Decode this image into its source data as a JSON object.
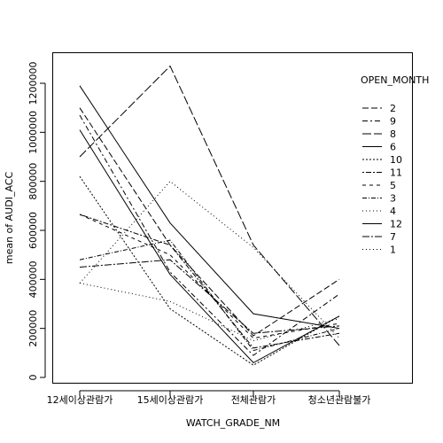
{
  "chart_data": {
    "type": "line",
    "title": "",
    "xlabel": "WATCH_GRADE_NM",
    "ylabel": "mean of AUDI_ACC",
    "categories": [
      "12세이상관람가",
      "15세이상관람가",
      "전체관람가",
      "청소년관람불가"
    ],
    "ylim": [
      0,
      1200000
    ],
    "yticks": [
      0,
      200000,
      400000,
      600000,
      800000,
      1000000,
      1200000
    ],
    "ytick_labels": [
      "0",
      "200000",
      "400000",
      "600000",
      "800000",
      "1000000",
      "1200000"
    ],
    "grid": false,
    "legend": {
      "title": "OPEN_MONTH",
      "placement": "right"
    },
    "series": [
      {
        "name": "2",
        "values": [
          1100000,
          540000,
          170000,
          400000
        ],
        "dash": "7,3"
      },
      {
        "name": "9",
        "values": [
          1070000,
          430000,
          90000,
          340000
        ],
        "dash": "6,3,2,3"
      },
      {
        "name": "8",
        "values": [
          900000,
          1270000,
          540000,
          130000
        ],
        "dash": "10,3"
      },
      {
        "name": "6",
        "values": [
          1190000,
          630000,
          260000,
          200000
        ],
        "dash": ""
      },
      {
        "name": "10",
        "values": [
          820000,
          280000,
          50000,
          250000
        ],
        "dash": "2,2"
      },
      {
        "name": "11",
        "values": [
          665000,
          540000,
          120000,
          180000
        ],
        "dash": "2,2,6,2"
      },
      {
        "name": "5",
        "values": [
          665000,
          500000,
          160000,
          220000
        ],
        "dash": "4,4"
      },
      {
        "name": "3",
        "values": [
          480000,
          560000,
          110000,
          200000
        ],
        "dash": "5,2,1,2"
      },
      {
        "name": "4",
        "values": [
          385000,
          310000,
          150000,
          240000
        ],
        "dash": "1,3"
      },
      {
        "name": "12",
        "values": [
          1010000,
          420000,
          60000,
          250000
        ],
        "dash": ""
      },
      {
        "name": "7",
        "values": [
          450000,
          480000,
          180000,
          210000
        ],
        "dash": "8,2,2,2"
      },
      {
        "name": "1",
        "values": [
          385000,
          800000,
          530000,
          160000
        ],
        "dash": "1,3"
      }
    ]
  }
}
